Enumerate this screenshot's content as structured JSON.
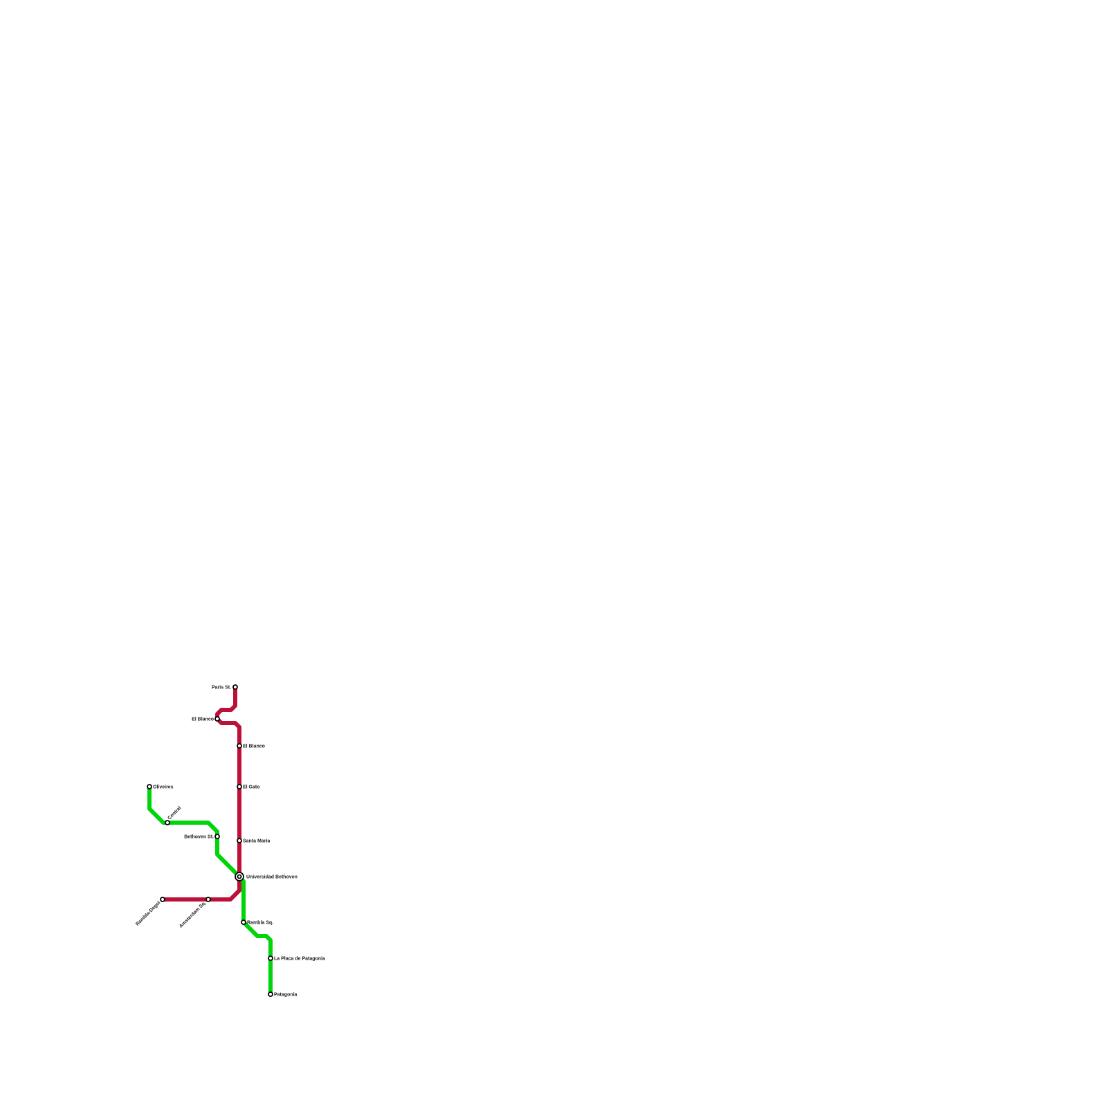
{
  "lines": [
    {
      "name": "red-line",
      "color": "#bd1038"
    },
    {
      "name": "green-line",
      "color": "#00d40a"
    }
  ],
  "stations": {
    "paris_st": "Paris St.",
    "el_blanco_1": "El Blanco",
    "el_blanco_2": "El Blanco",
    "el_gato": "El Gato",
    "santa_maria": "Santa Maria",
    "universidad_bethoven": "Universidad Bethoven",
    "amsterdam_sq": "Amsterdam Sq.",
    "rambla_degol": "Rambla-Degol",
    "oliveires": "Oliveires",
    "central": "Central",
    "bethoven_st": "Bethoven St.",
    "rambla_sq": "Rambla Sq.",
    "la_placa_de_patagonia": "La Placa de Patagonia",
    "patagonia": "Patagonia"
  }
}
